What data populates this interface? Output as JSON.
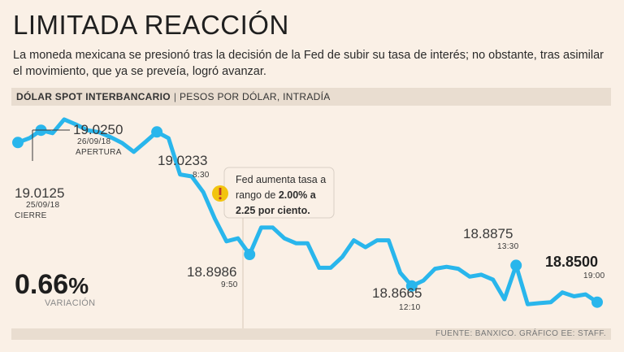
{
  "title": "LIMITADA REACCIÓN",
  "subtitle": "La moneda mexicana se presionó tras la decisión de la Fed de subir su tasa de interés; no obstante, tras asimilar el movimiento, que ya se preveía, logró avanzar.",
  "header_bar": {
    "main": "DÓLAR SPOT INTERBANCARIO",
    "separator": "|",
    "sub": "PESOS POR DÓLAR, INTRADÍA"
  },
  "footer": "FUENTE: BANXICO. GRÁFICO EE: STAFF.",
  "variation": {
    "value": "0.66",
    "unit": "%",
    "label": "VARIACIÓN"
  },
  "colors": {
    "line": "#29b6ec",
    "background": "#faf0e6",
    "bar": "#e9ddd0",
    "annotation_icon": "#f2c40f"
  },
  "annotation": {
    "icon": "exclamation-icon",
    "line1": "Fed aumenta tasa a",
    "line2_pre": "rango de ",
    "line2_bold": "2.00% a",
    "line3_bold": "2.25 por ciento."
  },
  "chart_data": {
    "type": "line",
    "title": "DÓLAR SPOT INTERBANCARIO",
    "ylabel": "PESOS POR DÓLAR",
    "xlabel": "INTRADÍA",
    "ylim": [
      18.82,
      19.05
    ],
    "grid": false,
    "series": [
      {
        "name": "Dólar spot",
        "values": [
          19.0125,
          19.017,
          19.025,
          19.022,
          19.036,
          19.031,
          19.025,
          19.023,
          19.018,
          19.012,
          19.003,
          19.013,
          19.0233,
          19.017,
          18.98,
          18.978,
          18.962,
          18.935,
          18.912,
          18.915,
          18.8986,
          18.926,
          18.926,
          18.915,
          18.91,
          18.91,
          18.885,
          18.885,
          18.896,
          18.913,
          18.906,
          18.913,
          18.913,
          18.88,
          18.8665,
          18.872,
          18.884,
          18.886,
          18.884,
          18.876,
          18.878,
          18.873,
          18.853,
          18.8875,
          18.848,
          18.849,
          18.85,
          18.86,
          18.856,
          18.858,
          18.85
        ]
      }
    ],
    "points": [
      {
        "value": "19.0125",
        "date": "25/09/18",
        "note": "CIERRE",
        "index": 0
      },
      {
        "value": "19.0250",
        "date": "26/09/18",
        "note": "APERTURA",
        "index": 2
      },
      {
        "value": "19.0233",
        "time": "8:30",
        "index": 12
      },
      {
        "value": "18.8986",
        "time": "9:50",
        "index": 20
      },
      {
        "value": "18.8665",
        "time": "12:10",
        "index": 34
      },
      {
        "value": "18.8875",
        "time": "13:30",
        "index": 43
      },
      {
        "value": "18.8500",
        "time": "19:00",
        "index": 50
      }
    ]
  }
}
